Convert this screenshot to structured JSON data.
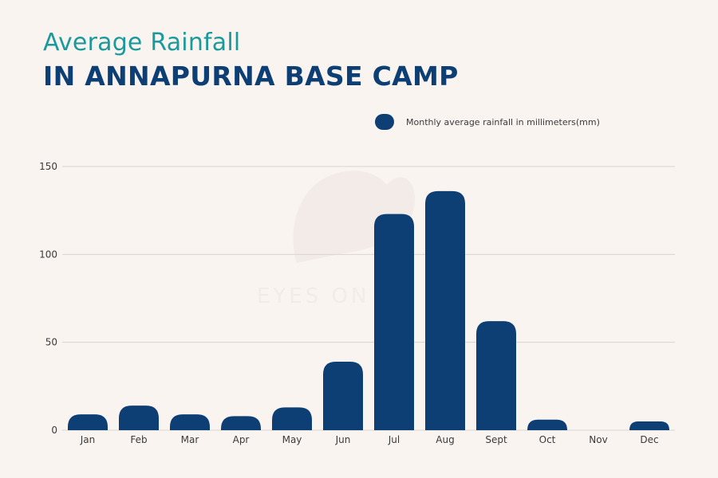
{
  "title": {
    "line1": "Average Rainfall",
    "line2": "IN ANNAPURNA BASE CAMP"
  },
  "legend": {
    "label": "Monthly average rainfall in millimeters(mm)",
    "color": "#0e3f74"
  },
  "watermark": {
    "text": "EYES ON"
  },
  "colors": {
    "bar": "#0e3f74",
    "grid": "#d9d4d1",
    "axis_text": "#3b3b3b",
    "title_accent": "#1a9a9a",
    "title_main": "#0e3f74",
    "background": "#faf4f1"
  },
  "chart_data": {
    "type": "bar",
    "categories": [
      "Jan",
      "Feb",
      "Mar",
      "Apr",
      "May",
      "Jun",
      "Jul",
      "Aug",
      "Sept",
      "Oct",
      "Nov",
      "Dec"
    ],
    "series": [
      {
        "name": "Monthly average rainfall in millimeters(mm)",
        "values": [
          9,
          14,
          9,
          8,
          13,
          39,
          123,
          136,
          62,
          6,
          0,
          5
        ]
      }
    ],
    "yticks": [
      0,
      50,
      100,
      150
    ],
    "ylim": [
      0,
      150
    ],
    "grid": true,
    "legend_position": "top-right"
  }
}
